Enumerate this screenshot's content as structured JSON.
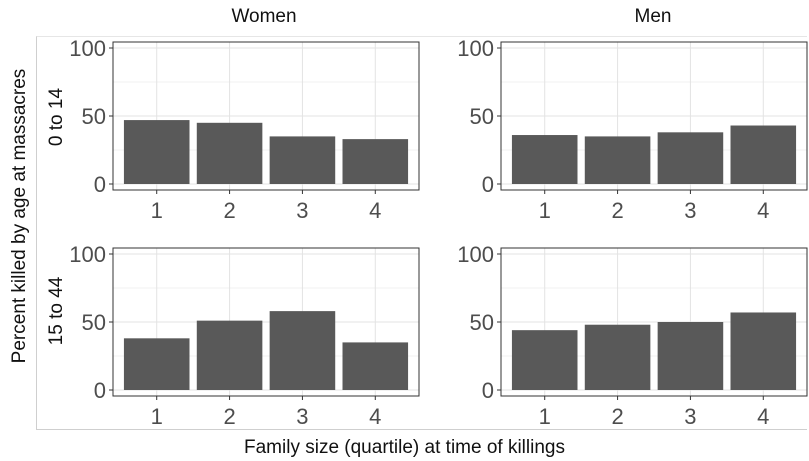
{
  "chart_data": {
    "type": "bar",
    "ylabel": "Percent killed  by age at massacres",
    "xlabel": "Family size (quartile) at time of killings",
    "ylim": [
      0,
      100
    ],
    "yticks": [
      0,
      50,
      100
    ],
    "grid": true,
    "columns": [
      "Women",
      "Men"
    ],
    "rows": [
      "0 to 14",
      "15 to 44"
    ],
    "categories": [
      "1",
      "2",
      "3",
      "4"
    ],
    "bar_color": "#595959",
    "panels": [
      {
        "row": "0 to 14",
        "column": "Women",
        "values": [
          47,
          45,
          35,
          33
        ]
      },
      {
        "row": "0 to 14",
        "column": "Men",
        "values": [
          36,
          35,
          38,
          43
        ]
      },
      {
        "row": "15 to 44",
        "column": "Women",
        "values": [
          38,
          51,
          58,
          35
        ]
      },
      {
        "row": "15 to 44",
        "column": "Men",
        "values": [
          44,
          48,
          50,
          57
        ]
      }
    ]
  }
}
